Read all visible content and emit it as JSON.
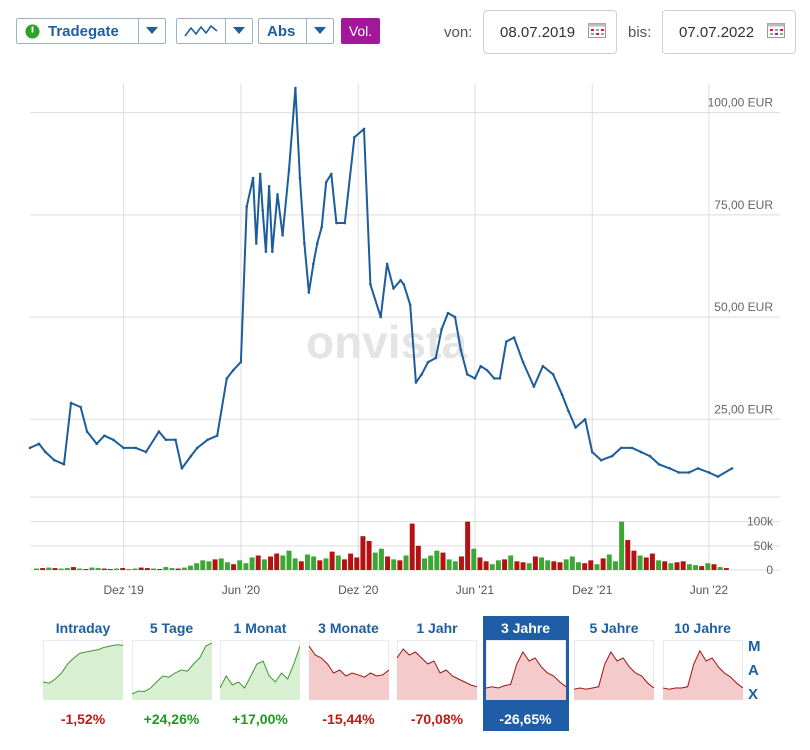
{
  "toolbar": {
    "exchange": "Tradegate",
    "mode": "Abs",
    "volume_button": "Vol.",
    "from_label": "von:",
    "from_date": "08.07.2019",
    "to_label": "bis:",
    "to_date": "07.07.2022",
    "icons": {
      "status": "green-power-icon",
      "chart_type": "line-chart-icon",
      "dropdown": "chevron-down-icon",
      "calendar": "calendar-icon"
    }
  },
  "watermark": "onvista",
  "colors": {
    "line": "#1c5d9a",
    "up": "#3aa832",
    "down": "#b41212",
    "grid": "#dddddd",
    "brand": "#1d5fa0",
    "active_tile": "#1f5ea7",
    "vol_button": "#a3179b"
  },
  "chart_data": [
    {
      "type": "line",
      "unit": "EUR",
      "y_ticks": [
        "25,00 EUR",
        "50,00 EUR",
        "75,00 EUR",
        "100,00 EUR"
      ],
      "y_tick_values": [
        25,
        50,
        75,
        100
      ],
      "ylim": [
        6,
        107
      ],
      "x_ticks": [
        "Dez '19",
        "Jun '20",
        "Dez '20",
        "Jun '21",
        "Dez '21",
        "Jun '22"
      ],
      "x_tick_dates": [
        "2019-12-01",
        "2020-06-01",
        "2020-12-01",
        "2021-06-01",
        "2021-12-01",
        "2022-06-01"
      ],
      "grid": true,
      "series": [
        {
          "x": [
            "2019-07-08",
            "2019-07-22",
            "2019-08-01",
            "2019-08-15",
            "2019-08-30",
            "2019-09-10",
            "2019-09-25",
            "2019-10-05",
            "2019-10-20",
            "2019-11-01",
            "2019-11-15",
            "2019-12-01",
            "2019-12-20",
            "2020-01-05",
            "2020-01-25",
            "2020-02-05",
            "2020-02-20",
            "2020-03-01",
            "2020-03-15",
            "2020-03-25",
            "2020-04-10",
            "2020-04-25",
            "2020-05-10",
            "2020-05-20",
            "2020-06-01",
            "2020-06-10",
            "2020-06-20",
            "2020-06-25",
            "2020-07-01",
            "2020-07-05",
            "2020-07-10",
            "2020-07-15",
            "2020-07-20",
            "2020-07-28",
            "2020-08-05",
            "2020-08-15",
            "2020-08-25",
            "2020-09-01",
            "2020-09-08",
            "2020-09-15",
            "2020-09-22",
            "2020-09-28",
            "2020-10-05",
            "2020-10-12",
            "2020-10-20",
            "2020-10-28",
            "2020-11-10",
            "2020-11-25",
            "2020-12-10",
            "2020-12-20",
            "2021-01-05",
            "2021-01-15",
            "2021-01-25",
            "2021-02-05",
            "2021-02-10",
            "2021-02-20",
            "2021-03-01",
            "2021-03-10",
            "2021-03-20",
            "2021-04-01",
            "2021-04-10",
            "2021-04-20",
            "2021-05-01",
            "2021-05-10",
            "2021-05-20",
            "2021-06-01",
            "2021-06-10",
            "2021-06-20",
            "2021-07-01",
            "2021-07-10",
            "2021-07-20",
            "2021-08-01",
            "2021-08-15",
            "2021-09-01",
            "2021-09-15",
            "2021-10-01",
            "2021-10-15",
            "2021-10-25",
            "2021-11-05",
            "2021-11-20",
            "2021-12-01",
            "2021-12-15",
            "2022-01-01",
            "2022-01-15",
            "2022-02-01",
            "2022-02-15",
            "2022-03-01",
            "2022-03-15",
            "2022-04-01",
            "2022-04-15",
            "2022-05-01",
            "2022-05-15",
            "2022-06-01",
            "2022-06-15",
            "2022-07-07"
          ],
          "y": [
            18,
            19,
            17,
            15,
            14,
            29,
            28,
            22,
            19,
            21,
            20,
            18,
            18,
            17,
            22,
            20,
            20,
            13,
            16,
            18,
            20,
            21,
            35,
            37,
            39,
            77,
            84,
            68,
            85,
            76,
            66,
            82,
            66,
            80,
            70,
            86,
            106,
            84,
            68,
            56,
            63,
            68,
            72,
            83,
            85,
            73,
            73,
            94,
            96,
            58,
            50,
            63,
            57,
            59,
            58,
            53,
            34,
            36,
            39,
            40,
            47,
            51,
            50,
            42,
            36,
            35,
            38,
            37,
            35,
            35,
            44,
            45,
            39,
            33,
            38,
            36,
            31,
            27,
            23,
            25,
            17,
            15,
            16,
            18,
            18,
            17,
            16,
            14,
            13,
            12,
            12,
            13,
            12,
            11,
            13
          ]
        }
      ]
    },
    {
      "type": "bar",
      "name_hidden": true,
      "y_ticks": [
        "100k",
        "50k",
        "0"
      ],
      "ylim": [
        0,
        120000
      ],
      "note": "daily volume, green = up day, red = down day",
      "values_k": [
        3,
        4,
        5,
        4,
        3,
        4,
        6,
        3,
        2,
        5,
        4,
        3,
        2,
        3,
        4,
        2,
        3,
        5,
        4,
        3,
        2,
        6,
        4,
        3,
        5,
        9,
        14,
        20,
        18,
        22,
        24,
        16,
        12,
        20,
        14,
        26,
        30,
        22,
        28,
        34,
        30,
        40,
        24,
        18,
        32,
        28,
        20,
        24,
        38,
        30,
        22,
        34,
        26,
        70,
        60,
        36,
        44,
        28,
        22,
        20,
        30,
        96,
        50,
        24,
        30,
        40,
        36,
        22,
        18,
        28,
        100,
        44,
        26,
        18,
        12,
        20,
        22,
        30,
        18,
        16,
        14,
        28,
        26,
        20,
        18,
        16,
        22,
        28,
        16,
        14,
        20,
        12,
        24,
        32,
        18,
        100,
        62,
        40,
        30,
        26,
        34,
        20,
        18,
        14,
        16,
        18,
        12,
        10,
        8,
        14,
        12,
        6,
        4
      ],
      "up": [
        1,
        0,
        1,
        0,
        1,
        1,
        0,
        1,
        0,
        1,
        1,
        0,
        0,
        1,
        0,
        1,
        1,
        0,
        0,
        1,
        0,
        1,
        1,
        0,
        1,
        1,
        1,
        1,
        1,
        0,
        1,
        1,
        0,
        1,
        1,
        1,
        0,
        1,
        0,
        0,
        1,
        1,
        1,
        0,
        1,
        1,
        0,
        1,
        0,
        1,
        0,
        0,
        0,
        0,
        0,
        1,
        1,
        0,
        1,
        0,
        1,
        0,
        0,
        1,
        1,
        1,
        0,
        1,
        1,
        0,
        0,
        1,
        0,
        0,
        1,
        1,
        0,
        1,
        0,
        0,
        1,
        0,
        1,
        1,
        0,
        0,
        1,
        1,
        1,
        0,
        0,
        1,
        0,
        1,
        1,
        1,
        0,
        0,
        1,
        0,
        0,
        1,
        0,
        1,
        0,
        0,
        1,
        1,
        0,
        1,
        0,
        1,
        0
      ]
    }
  ],
  "tiles": [
    {
      "name": "Intraday",
      "pct": "-1,52%",
      "dir": "neg",
      "active": false,
      "spark": [
        70,
        72,
        65,
        55,
        40,
        30,
        22,
        20,
        18,
        16,
        12,
        10,
        8,
        9
      ],
      "fill": "up"
    },
    {
      "name": "5 Tage",
      "pct": "+24,26%",
      "dir": "pos",
      "active": false,
      "spark": [
        90,
        85,
        86,
        80,
        70,
        60,
        62,
        55,
        50,
        52,
        40,
        30,
        10,
        5
      ],
      "fill": "up"
    },
    {
      "name": "1 Monat",
      "pct": "+17,00%",
      "dir": "pos",
      "active": false,
      "spark": [
        80,
        60,
        75,
        70,
        80,
        60,
        40,
        35,
        60,
        70,
        55,
        65,
        40,
        10
      ],
      "fill": "up"
    },
    {
      "name": "3 Monate",
      "pct": "-15,44%",
      "dir": "neg",
      "active": false,
      "spark": [
        10,
        25,
        30,
        40,
        55,
        50,
        60,
        55,
        58,
        62,
        55,
        60,
        58,
        50
      ],
      "fill": "down"
    },
    {
      "name": "1 Jahr",
      "pct": "-70,08%",
      "dir": "neg",
      "active": false,
      "spark": [
        30,
        15,
        25,
        20,
        30,
        40,
        35,
        55,
        50,
        60,
        65,
        70,
        75,
        78
      ],
      "fill": "down"
    },
    {
      "name": "3 Jahre",
      "pct": "-26,65%",
      "dir": "neg",
      "active": true,
      "spark": [
        80,
        78,
        80,
        76,
        74,
        40,
        20,
        35,
        30,
        45,
        55,
        60,
        70,
        78
      ],
      "fill": "down"
    },
    {
      "name": "5 Jahre",
      "pct": "",
      "dir": "neg",
      "active": false,
      "spark": [
        82,
        80,
        82,
        80,
        78,
        40,
        20,
        35,
        30,
        45,
        55,
        60,
        72,
        80
      ],
      "fill": "down"
    },
    {
      "name": "10 Jahre",
      "pct": "",
      "dir": "neg",
      "active": false,
      "spark": [
        80,
        82,
        80,
        80,
        78,
        40,
        18,
        35,
        30,
        45,
        55,
        62,
        72,
        80
      ],
      "fill": "down"
    }
  ],
  "range_max": [
    "M",
    "A",
    "X"
  ]
}
